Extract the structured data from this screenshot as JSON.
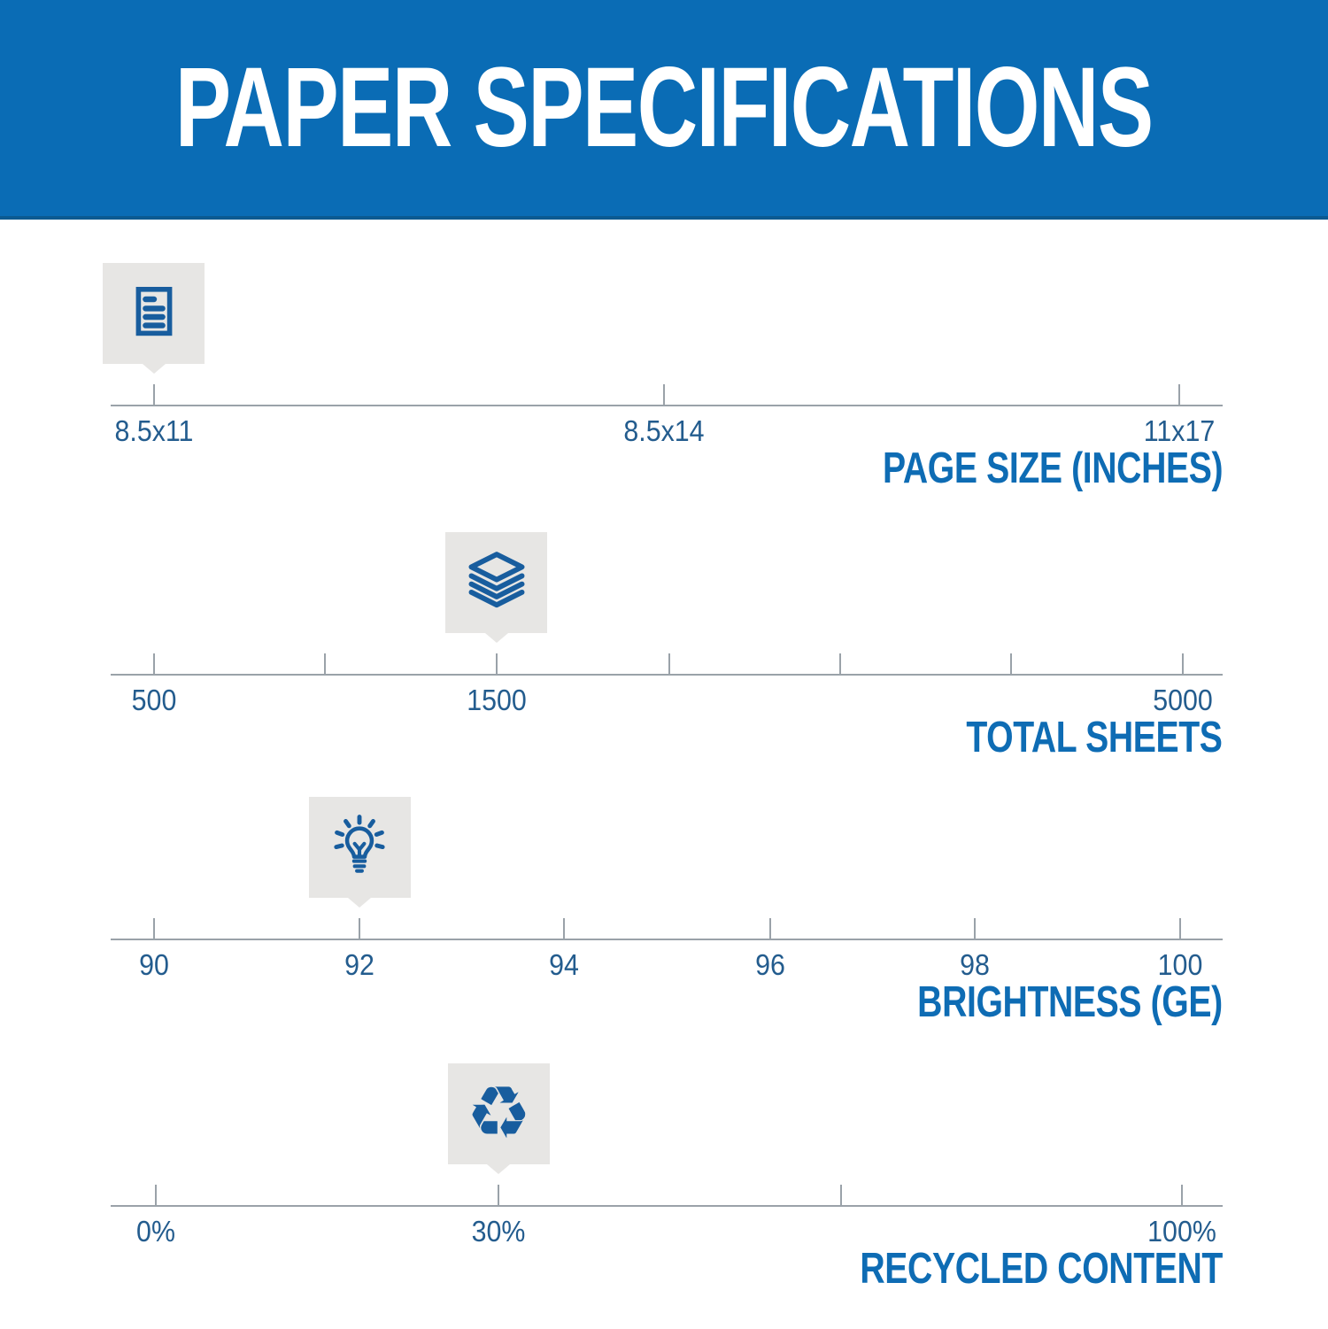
{
  "header": {
    "title": "PAPER SPECIFICATIONS"
  },
  "colors": {
    "header_bg": "#0a6cb5",
    "header_text": "#ffffff",
    "header_edge": "#0b5a91",
    "title_text": "#0e6cb4",
    "tick_label_text": "#235c8e",
    "icon_stroke": "#185d9e",
    "badge_bg": "#e7e6e4",
    "scale_line": "#9aa2a9"
  },
  "chart_data": [
    {
      "type": "scale",
      "title": "PAGE SIZE (INCHES)",
      "icon": "document-icon",
      "selected_value": "8.5x11",
      "selected_pos_pct": 3.9,
      "ticks": [
        {
          "label": "8.5x11",
          "pos_pct": 3.9
        },
        {
          "label": "8.5x14",
          "pos_pct": 49.8
        },
        {
          "label": "11x17",
          "pos_pct": 96.1
        }
      ]
    },
    {
      "type": "scale",
      "title": "TOTAL SHEETS",
      "icon": "paper-stack-icon",
      "selected_value": "1500",
      "selected_pos_pct": 34.7,
      "ticks": [
        {
          "label": "500",
          "pos_pct": 3.9
        },
        {
          "label": "",
          "pos_pct": 19.3
        },
        {
          "label": "1500",
          "pos_pct": 34.7
        },
        {
          "label": "",
          "pos_pct": 50.2
        },
        {
          "label": "",
          "pos_pct": 65.6
        },
        {
          "label": "",
          "pos_pct": 81.0
        },
        {
          "label": "5000",
          "pos_pct": 96.4
        }
      ]
    },
    {
      "type": "scale",
      "title": "BRIGHTNESS (GE)",
      "icon": "lightbulb-icon",
      "selected_value": "92",
      "selected_pos_pct": 22.4,
      "ticks": [
        {
          "label": "90",
          "pos_pct": 3.9
        },
        {
          "label": "92",
          "pos_pct": 22.4
        },
        {
          "label": "94",
          "pos_pct": 40.8
        },
        {
          "label": "96",
          "pos_pct": 59.3
        },
        {
          "label": "98",
          "pos_pct": 77.7
        },
        {
          "label": "100",
          "pos_pct": 96.2
        }
      ]
    },
    {
      "type": "scale",
      "title": "RECYCLED CONTENT",
      "icon": "recycle-icon",
      "selected_value": "30%",
      "selected_pos_pct": 34.9,
      "ticks": [
        {
          "label": "0%",
          "pos_pct": 4.1
        },
        {
          "label": "30%",
          "pos_pct": 34.9
        },
        {
          "label": "",
          "pos_pct": 65.7
        },
        {
          "label": "100%",
          "pos_pct": 96.3
        }
      ]
    }
  ],
  "icons": {
    "recycle_glyph": "♻"
  }
}
